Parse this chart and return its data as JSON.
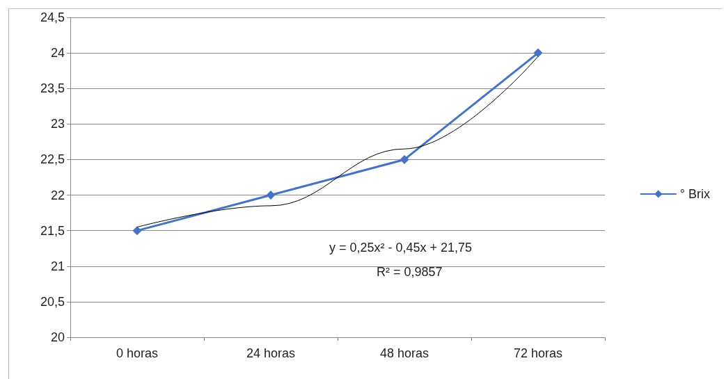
{
  "chart_data": {
    "type": "line",
    "categories": [
      "0 horas",
      "24 horas",
      "48 horas",
      "72 horas"
    ],
    "series": [
      {
        "name": "° Brix",
        "color": "#4472c4",
        "values": [
          21.5,
          22,
          22.5,
          24
        ],
        "marker": "diamond"
      },
      {
        "type": "line",
        "color": "#000000",
        "values": [
          21.55,
          21.85,
          22.65,
          23.95
        ],
        "marker": "none"
      }
    ],
    "ylim": [
      20,
      24.5
    ],
    "yticks": [
      20,
      {
        "value": 20.5,
        "label": "20,5"
      },
      21,
      {
        "value": 21.5,
        "label": "21,5"
      },
      22,
      {
        "value": 22.5,
        "label": "22,5"
      },
      23,
      {
        "value": 23.5,
        "label": "23,5"
      },
      24,
      {
        "value": 24.5,
        "label": "24,5"
      }
    ],
    "grid": "y",
    "legend": "right",
    "annotations": [
      "y = 0,25x² - 0,45x + 21,75",
      "R² = 0,9857"
    ]
  }
}
